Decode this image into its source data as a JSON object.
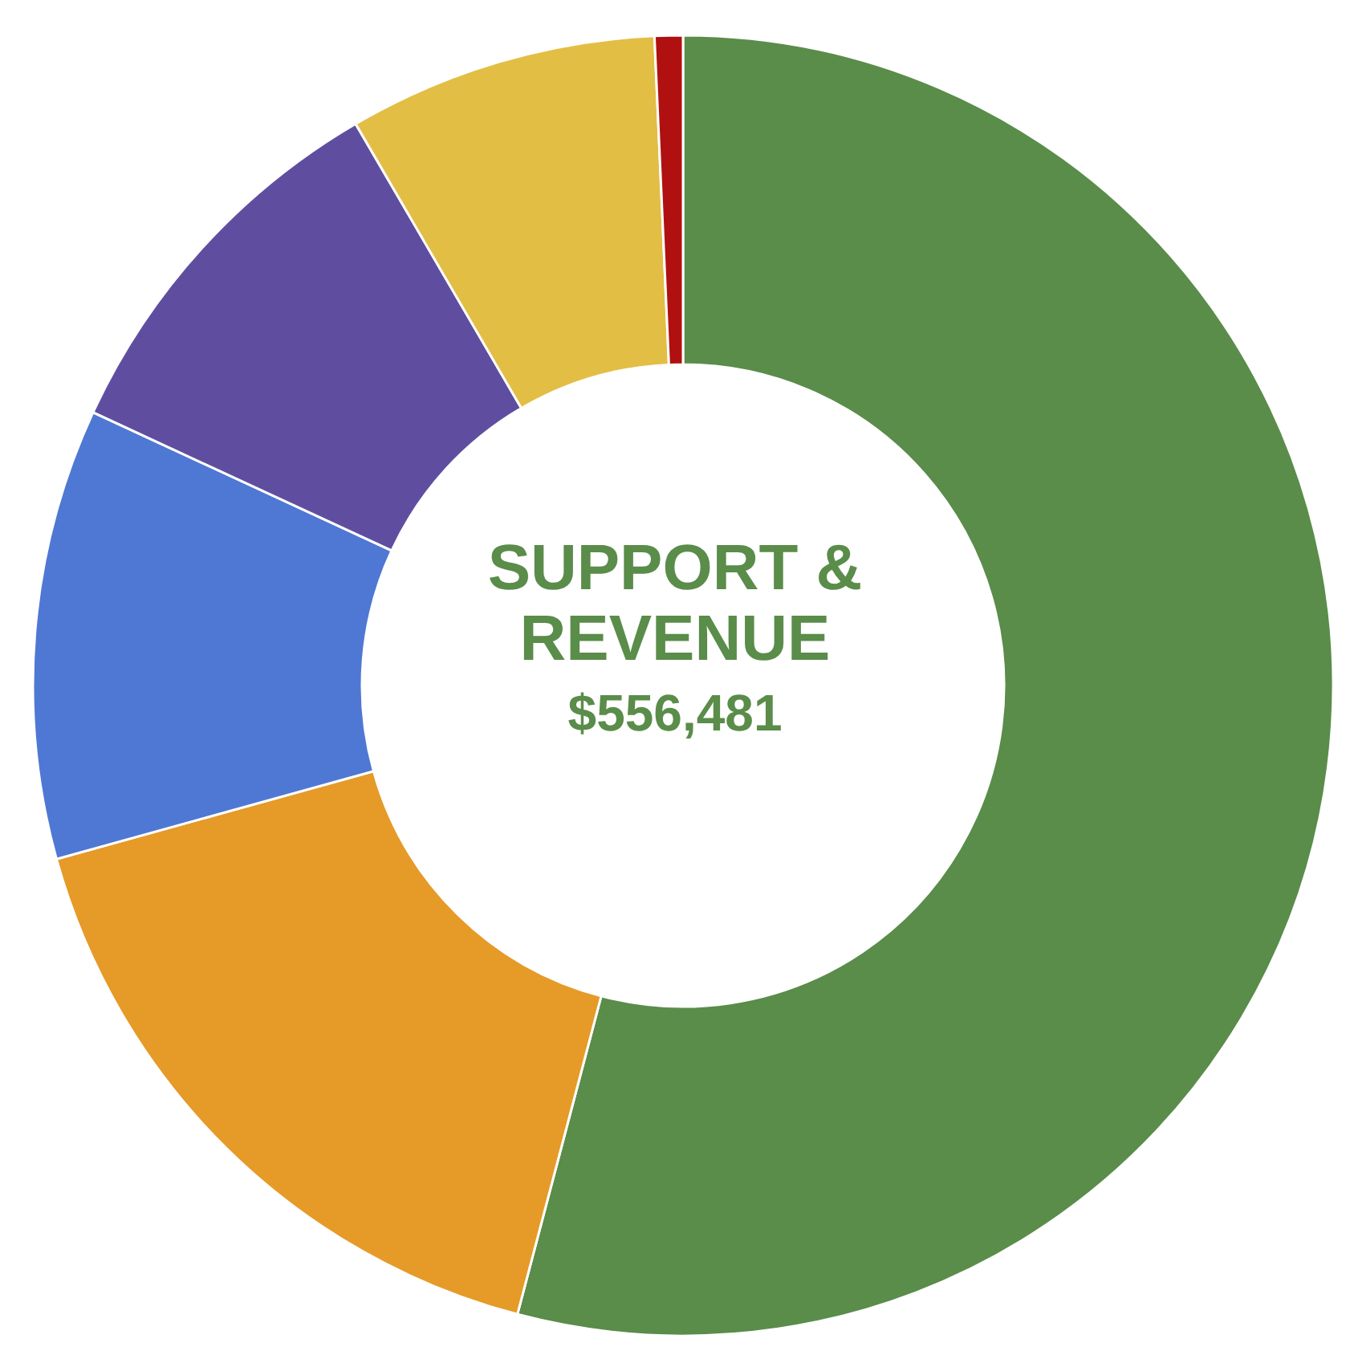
{
  "chart_data": {
    "type": "donut",
    "title": "SUPPORT & REVENUE",
    "subtitle": "$556,481",
    "categories": [
      null,
      null,
      null,
      null,
      null,
      null
    ],
    "values": [
      54.1,
      16.6,
      11.2,
      9.7,
      7.7,
      0.7
    ],
    "colors": [
      "#5a8c4a",
      "#e69a28",
      "#4f78d4",
      "#5f4ea0",
      "#e3be45",
      "#b01010"
    ],
    "legend": false
  }
}
